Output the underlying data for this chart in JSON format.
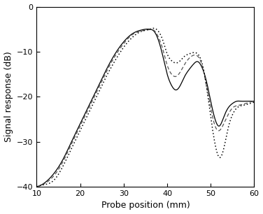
{
  "xlabel": "Probe position (mm)",
  "ylabel": "Signal response (dB)",
  "xlim": [
    10,
    60
  ],
  "ylim": [
    -40,
    0
  ],
  "xticks": [
    10,
    20,
    30,
    40,
    50,
    60
  ],
  "yticks": [
    0,
    -10,
    -20,
    -30,
    -40
  ],
  "line_solid_color": "#000000",
  "line_dashed_color": "#555555",
  "line_dotted_color": "#000000",
  "background_color": "#ffffff",
  "figsize": [
    3.76,
    3.06
  ],
  "dpi": 100,
  "solid_x": [
    10,
    12,
    14,
    16,
    18,
    20,
    22,
    24,
    26,
    28,
    30,
    32,
    34,
    36,
    37,
    38,
    39,
    40,
    41,
    42,
    43,
    44,
    45,
    46,
    47,
    48,
    49,
    50,
    51,
    52,
    53,
    54,
    55,
    56,
    57,
    58,
    59,
    60
  ],
  "solid_y": [
    -40,
    -39,
    -37,
    -34,
    -30,
    -26,
    -22,
    -18,
    -14,
    -10.5,
    -7.8,
    -6.0,
    -5.2,
    -5.0,
    -5.5,
    -7.5,
    -11,
    -15,
    -17.5,
    -18.5,
    -17.5,
    -15.5,
    -14,
    -12.8,
    -12.2,
    -13.5,
    -16.5,
    -21,
    -25,
    -26.5,
    -24.5,
    -22.5,
    -21.5,
    -21,
    -21,
    -21,
    -21,
    -21
  ],
  "dashed_x": [
    10,
    12,
    14,
    16,
    18,
    20,
    22,
    24,
    26,
    28,
    30,
    32,
    34,
    36,
    37,
    38,
    39,
    40,
    41,
    42,
    43,
    44,
    45,
    46,
    47,
    48,
    49,
    50,
    51,
    52,
    53,
    54,
    55,
    56,
    57,
    58,
    59,
    60
  ],
  "dashed_y": [
    -40,
    -39.2,
    -37.5,
    -34.5,
    -30.5,
    -26.5,
    -22.5,
    -18.5,
    -14.5,
    -11,
    -8.2,
    -6.2,
    -5.4,
    -5.1,
    -5.3,
    -6.8,
    -9.5,
    -13,
    -15,
    -15.5,
    -14.5,
    -12.8,
    -11.5,
    -10.8,
    -11.0,
    -13.0,
    -17.5,
    -22.5,
    -26.5,
    -27.5,
    -26.0,
    -24.0,
    -22.5,
    -22,
    -21.8,
    -21.5,
    -21.2,
    -21
  ],
  "dotted_x": [
    10,
    12,
    14,
    16,
    18,
    20,
    22,
    24,
    26,
    28,
    30,
    32,
    34,
    36,
    37,
    38,
    39,
    40,
    41,
    42,
    43,
    44,
    45,
    46,
    47,
    48,
    49,
    50,
    51,
    52,
    53,
    54,
    55,
    56,
    57,
    58,
    59,
    60
  ],
  "dotted_y": [
    -40,
    -39.5,
    -38.5,
    -35.5,
    -31.5,
    -27.5,
    -23.5,
    -19.5,
    -15.5,
    -12,
    -9,
    -6.8,
    -5.5,
    -5.0,
    -4.8,
    -5.5,
    -7.5,
    -10.5,
    -12.0,
    -12.5,
    -12.0,
    -11.0,
    -10.5,
    -10.2,
    -10.5,
    -12.5,
    -17.5,
    -24.5,
    -30.5,
    -33.5,
    -31.5,
    -27.0,
    -24.0,
    -22.5,
    -22,
    -21.8,
    -21.5,
    -21.2
  ]
}
